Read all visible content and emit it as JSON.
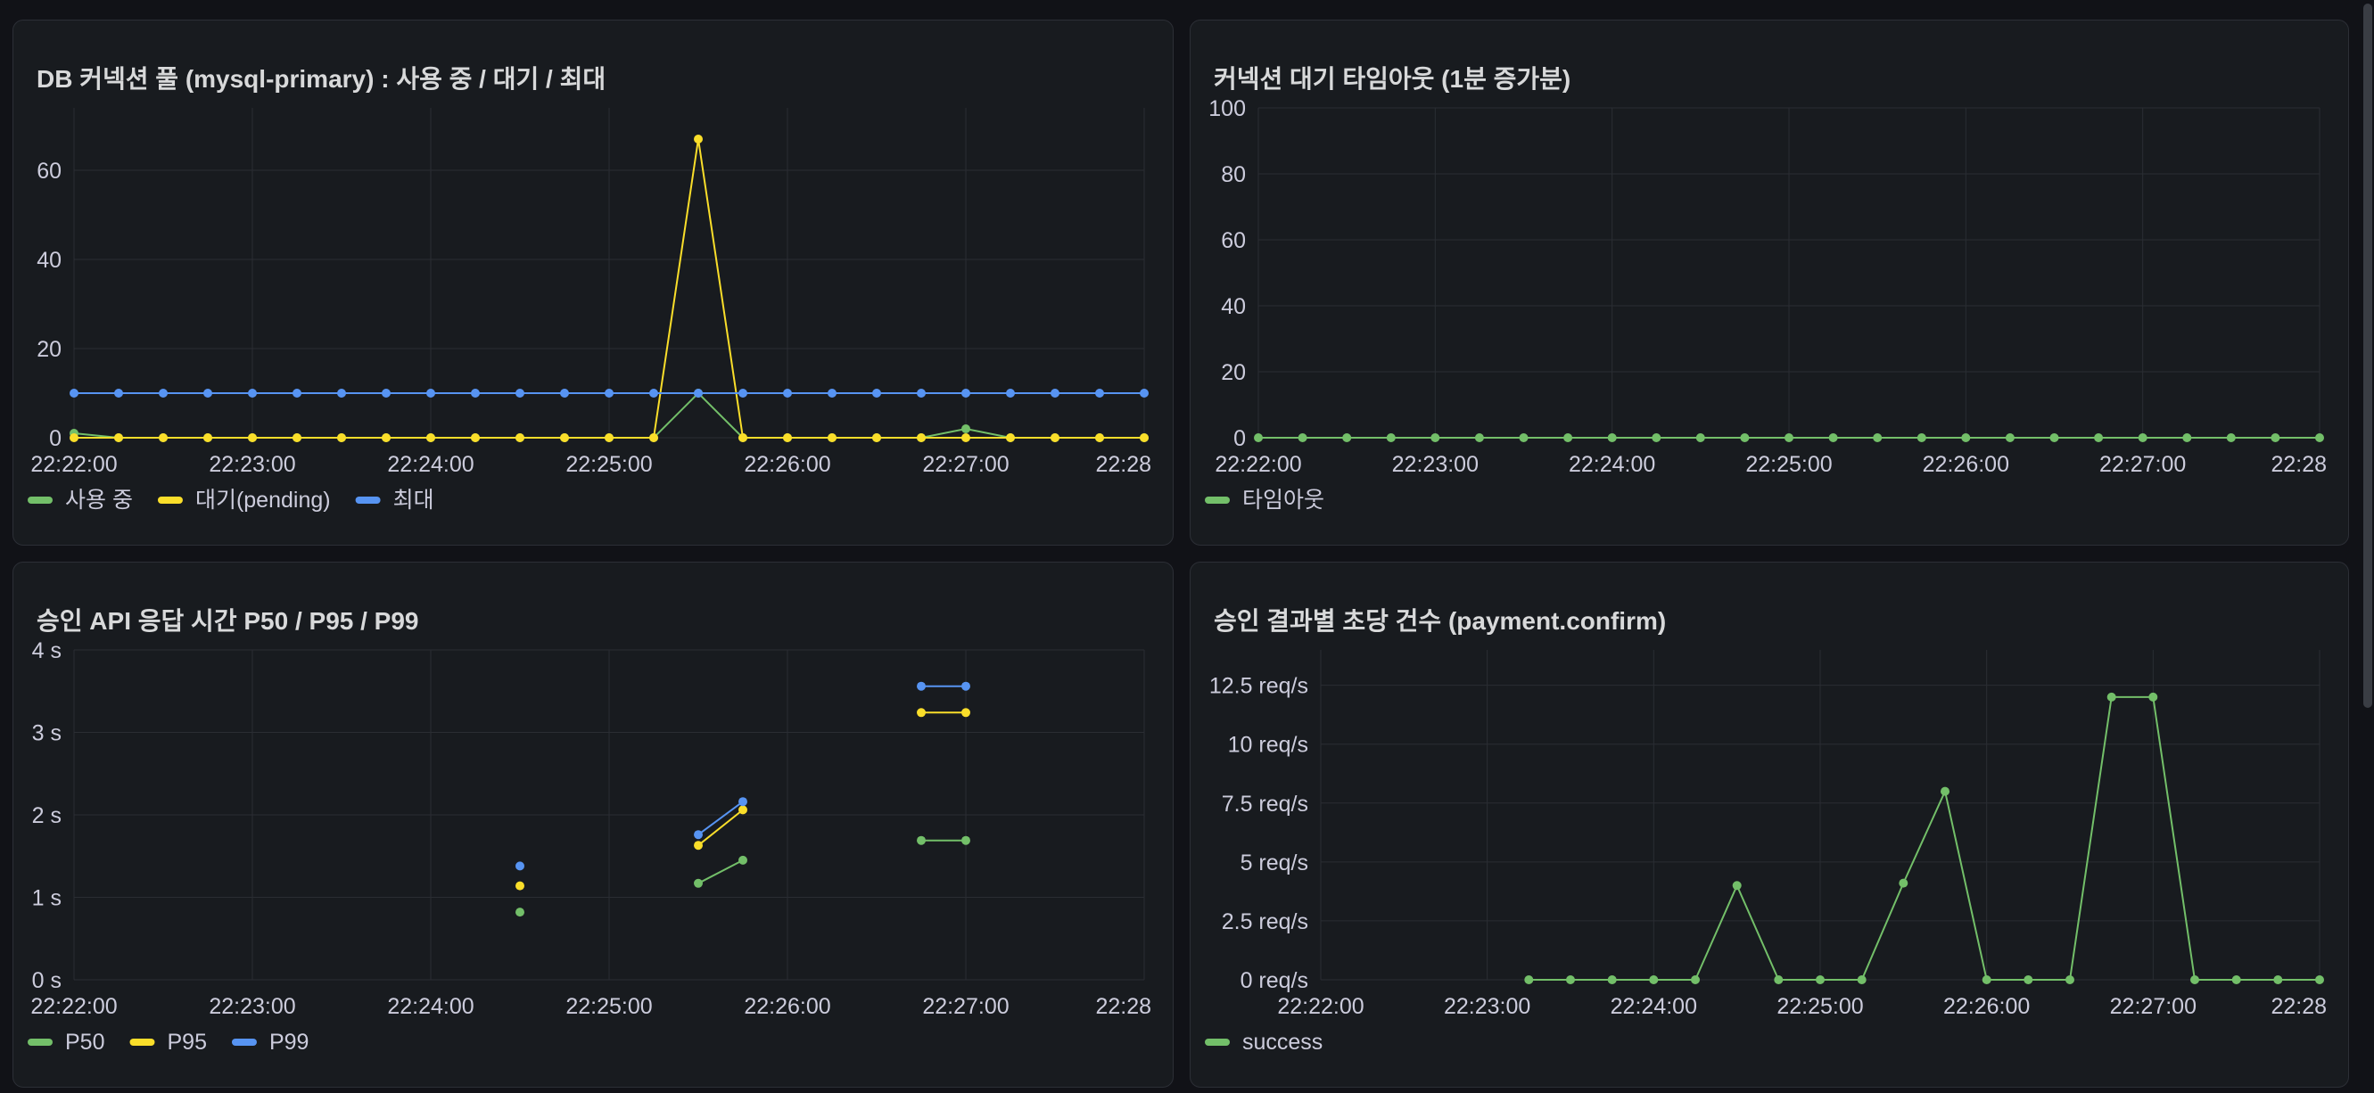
{
  "panels": [
    {
      "title": "DB 커넥션 풀 (mysql-primary) : 사용 중 / 대기 / 최대",
      "chart_data": {
        "type": "line",
        "x_ticks": [
          "22:22:00",
          "22:23:00",
          "22:24:00",
          "22:25:00",
          "22:26:00",
          "22:27:00",
          "22:28"
        ],
        "y_ticks": [
          "0",
          "20",
          "40",
          "60"
        ],
        "ylim": [
          0,
          74
        ],
        "x_range_min": [
          0,
          6
        ],
        "grid": true,
        "legend_position": "bottom-left",
        "series": [
          {
            "name": "사용 중",
            "color": "#73bf69",
            "x": [
              0,
              0.5,
              1,
              1.5,
              2,
              2.5,
              3,
              3.5,
              4,
              4.5,
              5,
              5.5,
              6,
              6.5,
              7,
              7.5,
              8,
              8.5,
              9,
              9.5,
              10,
              10.5,
              11,
              11.5,
              12
            ],
            "y": [
              1,
              0,
              0,
              0,
              0,
              0,
              0,
              0,
              0,
              0,
              0,
              0,
              0,
              0,
              10,
              0,
              0,
              0,
              0,
              0,
              2,
              0,
              0,
              0,
              0
            ]
          },
          {
            "name": "대기(pending)",
            "color": "#fade2a",
            "x": [
              0,
              0.5,
              1,
              1.5,
              2,
              2.5,
              3,
              3.5,
              4,
              4.5,
              5,
              5.5,
              6,
              6.5,
              7,
              7.5,
              8,
              8.5,
              9,
              9.5,
              10,
              10.5,
              11,
              11.5,
              12
            ],
            "y": [
              0,
              0,
              0,
              0,
              0,
              0,
              0,
              0,
              0,
              0,
              0,
              0,
              0,
              0,
              67,
              0,
              0,
              0,
              0,
              0,
              0,
              0,
              0,
              0,
              0
            ]
          },
          {
            "name": "최대",
            "color": "#5794f2",
            "x": [
              0,
              0.5,
              1,
              1.5,
              2,
              2.5,
              3,
              3.5,
              4,
              4.5,
              5,
              5.5,
              6,
              6.5,
              7,
              7.5,
              8,
              8.5,
              9,
              9.5,
              10,
              10.5,
              11,
              11.5,
              12
            ],
            "y": [
              10,
              10,
              10,
              10,
              10,
              10,
              10,
              10,
              10,
              10,
              10,
              10,
              10,
              10,
              10,
              10,
              10,
              10,
              10,
              10,
              10,
              10,
              10,
              10,
              10
            ]
          }
        ]
      }
    },
    {
      "title": "커넥션 대기 타임아웃 (1분 증가분)",
      "chart_data": {
        "type": "line",
        "x_ticks": [
          "22:22:00",
          "22:23:00",
          "22:24:00",
          "22:25:00",
          "22:26:00",
          "22:27:00",
          "22:28"
        ],
        "y_ticks": [
          "0",
          "20",
          "40",
          "60",
          "80",
          "100"
        ],
        "ylim": [
          0,
          100
        ],
        "grid": true,
        "legend_position": "bottom-left",
        "series": [
          {
            "name": "타임아웃",
            "color": "#73bf69",
            "x": [
              0,
              0.5,
              1,
              1.5,
              2,
              2.5,
              3,
              3.5,
              4,
              4.5,
              5,
              5.5,
              6,
              6.5,
              7,
              7.5,
              8,
              8.5,
              9,
              9.5,
              10,
              10.5,
              11,
              11.5,
              12
            ],
            "y": [
              0,
              0,
              0,
              0,
              0,
              0,
              0,
              0,
              0,
              0,
              0,
              0,
              0,
              0,
              0,
              0,
              0,
              0,
              0,
              0,
              0,
              0,
              0,
              0,
              0
            ]
          }
        ]
      }
    },
    {
      "title": "승인 API 응답 시간 P50 / P95 / P99",
      "chart_data": {
        "type": "line",
        "x_ticks": [
          "22:22:00",
          "22:23:00",
          "22:24:00",
          "22:25:00",
          "22:26:00",
          "22:27:00",
          "22:28"
        ],
        "y_ticks": [
          "0 s",
          "1 s",
          "2 s",
          "3 s",
          "4 s"
        ],
        "ylim": [
          0,
          4
        ],
        "grid": true,
        "legend_position": "bottom-left",
        "series": [
          {
            "name": "P50",
            "color": "#73bf69",
            "segments": [
              [
                [
                  2.5,
                  0.82
                ]
              ],
              [
                [
                  3.5,
                  1.17
                ],
                [
                  3.75,
                  1.45
                ]
              ],
              [
                [
                  4.75,
                  1.69
                ],
                [
                  5.0,
                  1.69
                ]
              ]
            ]
          },
          {
            "name": "P95",
            "color": "#fade2a",
            "segments": [
              [
                [
                  2.5,
                  1.14
                ]
              ],
              [
                [
                  3.5,
                  1.63
                ],
                [
                  3.75,
                  2.06
                ]
              ],
              [
                [
                  4.75,
                  3.24
                ],
                [
                  5.0,
                  3.24
                ]
              ]
            ]
          },
          {
            "name": "P99",
            "color": "#5794f2",
            "segments": [
              [
                [
                  2.5,
                  1.38
                ]
              ],
              [
                [
                  3.5,
                  1.76
                ],
                [
                  3.75,
                  2.16
                ]
              ],
              [
                [
                  4.75,
                  3.56
                ],
                [
                  5.0,
                  3.56
                ]
              ]
            ]
          }
        ]
      }
    },
    {
      "title": "승인 결과별 초당 건수 (payment.confirm)",
      "chart_data": {
        "type": "line",
        "x_ticks": [
          "22:22:00",
          "22:23:00",
          "22:24:00",
          "22:25:00",
          "22:26:00",
          "22:27:00",
          "22:28"
        ],
        "y_ticks": [
          "0 req/s",
          "2.5 req/s",
          "5 req/s",
          "7.5 req/s",
          "10 req/s",
          "12.5 req/s"
        ],
        "ylim": [
          0,
          14
        ],
        "grid": true,
        "legend_position": "bottom-left",
        "series": [
          {
            "name": "success",
            "color": "#73bf69",
            "x": [
              1.25,
              1.5,
              1.75,
              2,
              2.25,
              2.5,
              2.75,
              3,
              3.25,
              3.5,
              3.75,
              4,
              4.25,
              4.5,
              4.75,
              5,
              5.25,
              5.5,
              5.75,
              6
            ],
            "y": [
              0,
              0,
              0,
              0,
              0,
              4,
              0,
              0,
              0,
              4.1,
              8,
              0,
              0,
              0,
              12,
              12,
              0,
              0,
              0,
              0
            ]
          }
        ]
      }
    }
  ]
}
